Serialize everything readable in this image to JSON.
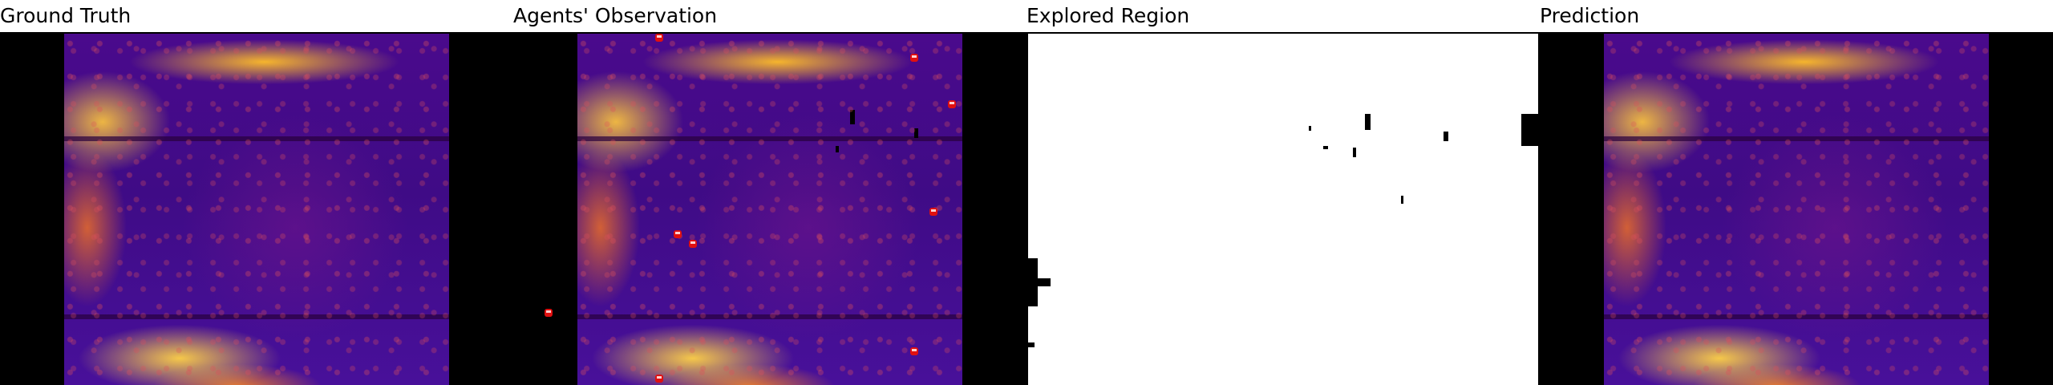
{
  "panels": {
    "ground_truth": {
      "title": "Ground Truth"
    },
    "agents_observation": {
      "title": "Agents' Observation"
    },
    "explored_region": {
      "title": "Explored Region"
    },
    "prediction": {
      "title": "Prediction"
    }
  },
  "colors": {
    "background": "#ffffff",
    "map_fill": "#000000",
    "heatmap_low": "#3f0b86",
    "heatmap_high": "#ffbe28",
    "agent_marker": "#e01010"
  },
  "icons": {
    "agent_marker": "agent-marker-icon"
  }
}
